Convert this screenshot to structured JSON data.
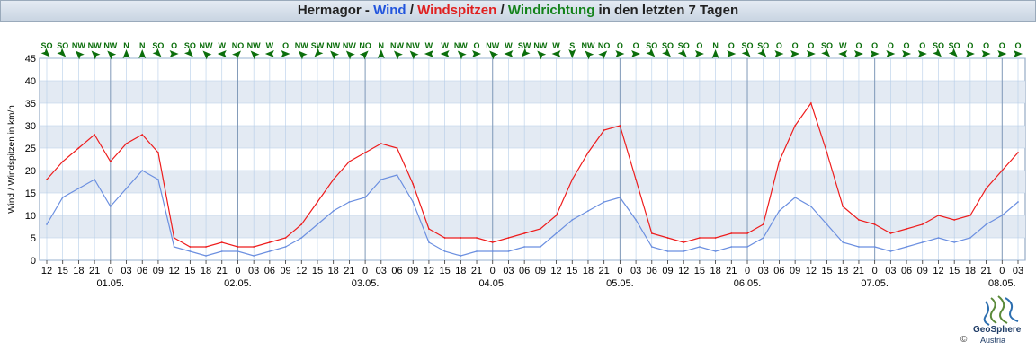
{
  "title": {
    "station": "Hermagor",
    "sep1": " - ",
    "wind": "Wind",
    "sep2": " / ",
    "gusts": "Windspitzen",
    "sep3": " / ",
    "direction": "Windrichtung",
    "suffix": " in den letzten 7 Tagen"
  },
  "logo": {
    "name": "GeoSphere",
    "sub": "Austria",
    "copyright": "©"
  },
  "chart_data": {
    "type": "line",
    "ylabel": "Wind / Windspitzen in km/h",
    "ylim": [
      0,
      45
    ],
    "yticks": [
      "0",
      "5",
      "10",
      "15",
      "20",
      "25",
      "30",
      "35",
      "40",
      "45"
    ],
    "hour_ticks": [
      "12",
      "15",
      "18",
      "21",
      "0",
      "03",
      "06",
      "09",
      "12",
      "15",
      "18",
      "21",
      "0",
      "03",
      "06",
      "09",
      "12",
      "15",
      "18",
      "21",
      "0",
      "03",
      "06",
      "09",
      "12",
      "15",
      "18",
      "21",
      "0",
      "03",
      "06",
      "09",
      "12",
      "15",
      "18",
      "21",
      "0",
      "03",
      "06",
      "09",
      "12",
      "15",
      "18",
      "21",
      "0",
      "03",
      "06",
      "09",
      "12",
      "15",
      "18",
      "21",
      "0",
      "03",
      "06",
      "09",
      "12",
      "15",
      "18",
      "21",
      "0",
      "03"
    ],
    "day_labels": [
      "01.05.",
      "02.05.",
      "03.05.",
      "04.05.",
      "05.05.",
      "06.05.",
      "07.05.",
      "08.05."
    ],
    "day_label_tick_index": [
      4,
      12,
      20,
      28,
      36,
      44,
      52,
      60
    ],
    "wind_directions": [
      "SO",
      "SO",
      "NW",
      "NW",
      "NW",
      "N",
      "N",
      "SO",
      "O",
      "SO",
      "NW",
      "W",
      "NO",
      "NW",
      "W",
      "O",
      "NW",
      "SW",
      "NW",
      "NW",
      "NO",
      "N",
      "NW",
      "NW",
      "W",
      "W",
      "NW",
      "O",
      "NW",
      "W",
      "SW",
      "NW",
      "W",
      "S",
      "NW",
      "NO",
      "O",
      "O",
      "SO",
      "SO",
      "SO",
      "O",
      "N",
      "O",
      "SO",
      "SO",
      "O",
      "O",
      "O",
      "SO",
      "W",
      "O",
      "O",
      "O",
      "O",
      "O",
      "SO",
      "SO",
      "O",
      "O",
      "O",
      "O"
    ],
    "colors": {
      "wind": "#6b8fe0",
      "gusts": "#ee1c1c",
      "direction": "#0b6e0b",
      "band": "#e3eaf3",
      "grid": "#b5cde8"
    },
    "series": [
      {
        "name": "Wind",
        "values": [
          8,
          14,
          16,
          18,
          12,
          16,
          20,
          18,
          3,
          2,
          1,
          2,
          2,
          1,
          2,
          3,
          5,
          8,
          11,
          13,
          14,
          18,
          19,
          13,
          4,
          2,
          1,
          2,
          2,
          2,
          3,
          3,
          6,
          9,
          11,
          13,
          14,
          9,
          3,
          2,
          2,
          3,
          2,
          3,
          3,
          5,
          11,
          14,
          12,
          8,
          4,
          3,
          3,
          2,
          3,
          4,
          5,
          4,
          5,
          8,
          10,
          13
        ]
      },
      {
        "name": "Windspitzen",
        "values": [
          18,
          22,
          25,
          28,
          22,
          26,
          28,
          24,
          5,
          3,
          3,
          4,
          3,
          3,
          4,
          5,
          8,
          13,
          18,
          22,
          24,
          26,
          25,
          17,
          7,
          5,
          5,
          5,
          4,
          5,
          6,
          7,
          10,
          18,
          24,
          29,
          30,
          18,
          6,
          5,
          4,
          5,
          5,
          6,
          6,
          8,
          22,
          30,
          35,
          24,
          12,
          9,
          8,
          6,
          7,
          8,
          10,
          9,
          10,
          16,
          20,
          24
        ]
      }
    ]
  }
}
